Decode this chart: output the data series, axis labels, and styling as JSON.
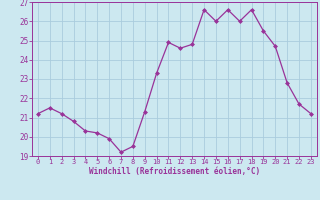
{
  "x": [
    0,
    1,
    2,
    3,
    4,
    5,
    6,
    7,
    8,
    9,
    10,
    11,
    12,
    13,
    14,
    15,
    16,
    17,
    18,
    19,
    20,
    21,
    22,
    23
  ],
  "y": [
    21.2,
    21.5,
    21.2,
    20.8,
    20.3,
    20.2,
    19.9,
    19.2,
    19.5,
    21.3,
    23.3,
    24.9,
    24.6,
    24.8,
    26.6,
    26.0,
    26.6,
    26.0,
    26.6,
    25.5,
    24.7,
    22.8,
    21.7,
    21.2
  ],
  "line_color": "#993399",
  "marker_color": "#993399",
  "bg_color": "#cce8f0",
  "grid_color": "#aaccdd",
  "axis_color": "#993399",
  "xlabel": "Windchill (Refroidissement éolien,°C)",
  "ylim": [
    19,
    27
  ],
  "yticks": [
    19,
    20,
    21,
    22,
    23,
    24,
    25,
    26,
    27
  ],
  "xticks": [
    0,
    1,
    2,
    3,
    4,
    5,
    6,
    7,
    8,
    9,
    10,
    11,
    12,
    13,
    14,
    15,
    16,
    17,
    18,
    19,
    20,
    21,
    22,
    23
  ]
}
